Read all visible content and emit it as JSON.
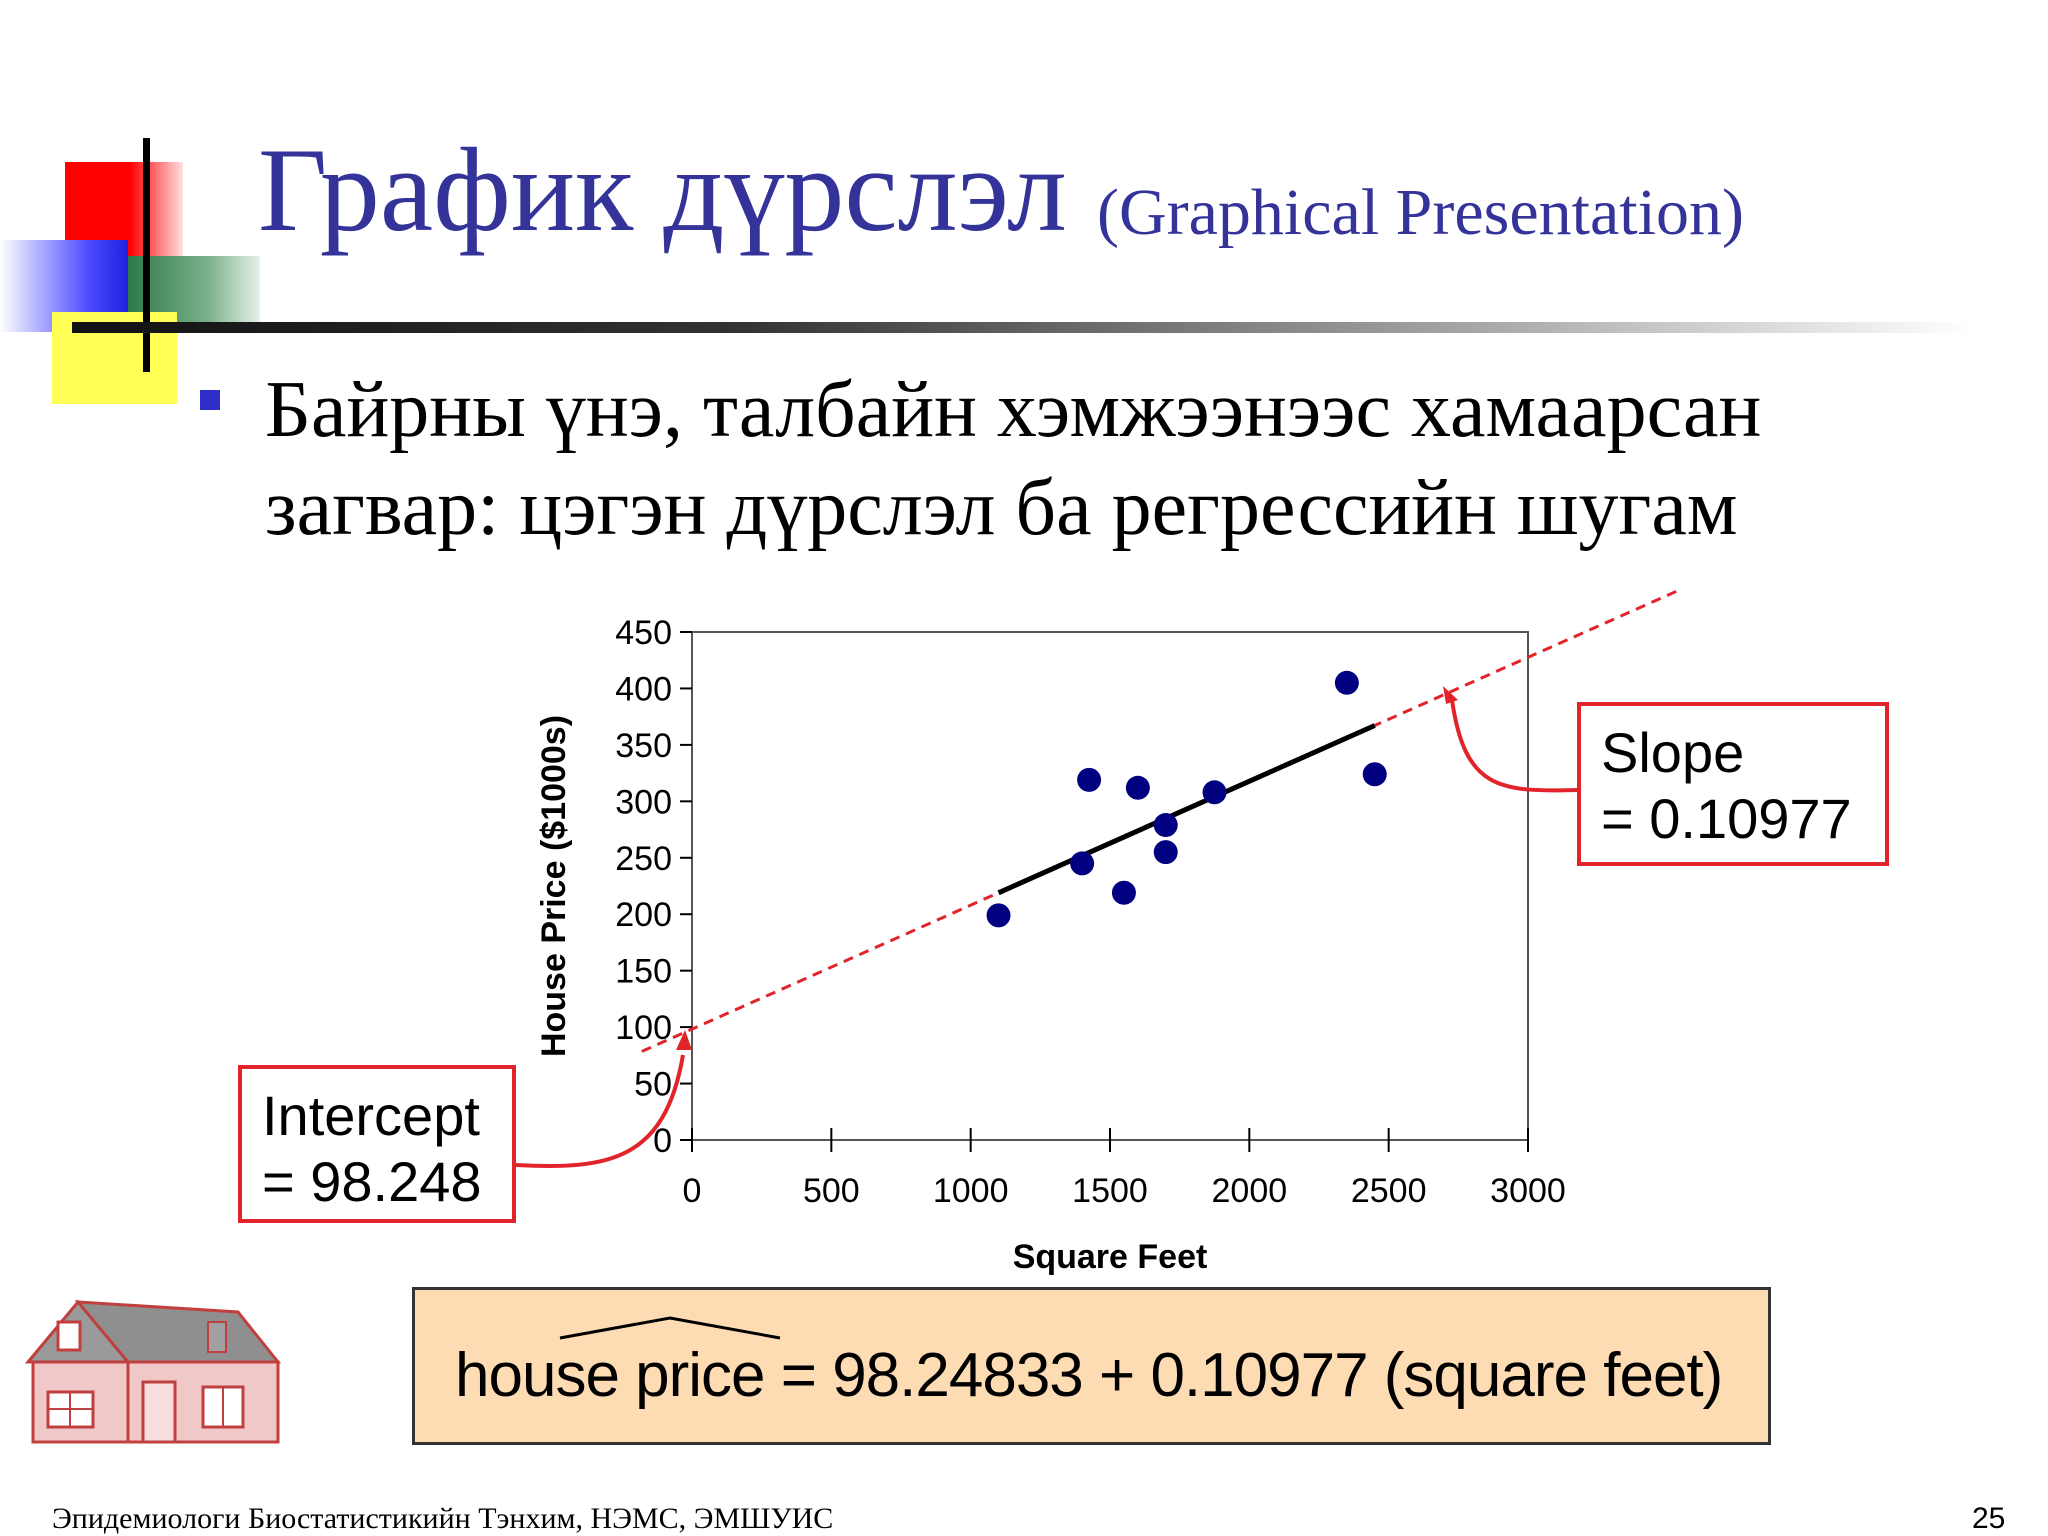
{
  "slide": {
    "title_main": "График дүрслэл",
    "title_sub": "(Graphical Presentation)",
    "bullet_line1": "Байрны үнэ, талбайн хэмжээнээс хамаарсан",
    "bullet_line2": "загвар:  цэгэн дүрслэл ба регрессийн шугам",
    "slope_line1": "Slope",
    "slope_line2": "= 0.10977",
    "intercept_line1": "Intercept",
    "intercept_line2": "= 98.248",
    "equation": "house price = 98.24833 + 0.10977 (square feet)",
    "footer": "Эпидемиологи Биостатистикийн Тэнхим, НЭМС, ЭМШУИС",
    "page_number": "25"
  },
  "colors": {
    "title": "#33339a",
    "points": "#000080",
    "regression_line": "#000000",
    "extension_line": "#e0242a",
    "callout_border": "#e0242a",
    "equation_bg": "#fddcb4"
  },
  "chart_data": {
    "type": "scatter",
    "xlabel": "Square Feet",
    "ylabel": "House Price ($1000s)",
    "xlim": [
      0,
      3000
    ],
    "ylim": [
      0,
      450
    ],
    "xticks": [
      0,
      500,
      1000,
      1500,
      2000,
      2500,
      3000
    ],
    "yticks": [
      0,
      50,
      100,
      150,
      200,
      250,
      300,
      350,
      400,
      450
    ],
    "grid": false,
    "points": [
      {
        "x": 1100,
        "y": 199
      },
      {
        "x": 1400,
        "y": 245
      },
      {
        "x": 1425,
        "y": 319
      },
      {
        "x": 1550,
        "y": 219
      },
      {
        "x": 1600,
        "y": 312
      },
      {
        "x": 1700,
        "y": 279
      },
      {
        "x": 1700,
        "y": 255
      },
      {
        "x": 1875,
        "y": 308
      },
      {
        "x": 2350,
        "y": 405
      },
      {
        "x": 2450,
        "y": 324
      }
    ],
    "regression": {
      "intercept": 98.248,
      "slope": 0.10977,
      "fit_x_range": [
        1100,
        2450
      ]
    }
  }
}
